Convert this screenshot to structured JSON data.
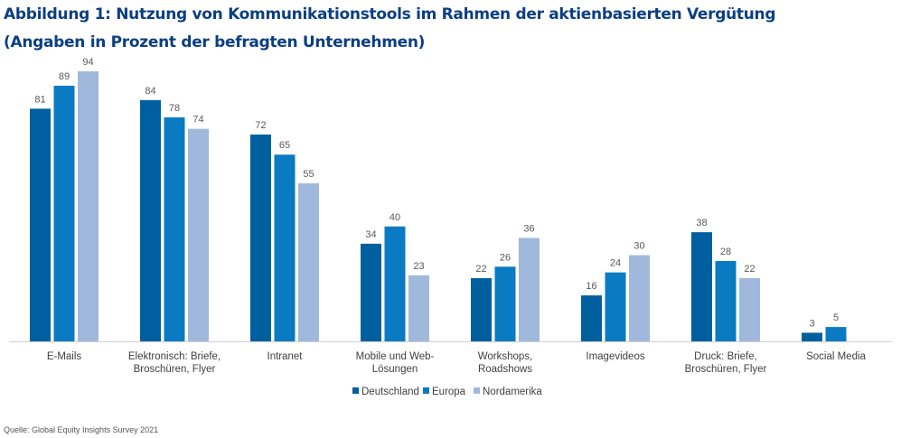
{
  "title": "Abbildung 1: Nutzung von Kommunikationstools im Rahmen der aktienbasierten Vergütung",
  "subtitle": "(Angaben in Prozent der befragten Unternehmen)",
  "source": "Quelle: Global Equity Insights Survey 2021",
  "chart_data": {
    "type": "bar",
    "title": "Abbildung 1: Nutzung von Kommunikationstools im Rahmen der aktienbasierten Vergütung",
    "subtitle": "(Angaben in Prozent der befragten Unternehmen)",
    "categories": [
      [
        "E-Mails"
      ],
      [
        "Elektronisch: Briefe,",
        "Broschüren, Flyer"
      ],
      [
        "Intranet"
      ],
      [
        "Mobile und Web-",
        "Lösungen"
      ],
      [
        "Workshops,",
        "Roadshows"
      ],
      [
        "Imagevideos"
      ],
      [
        "Druck: Briefe,",
        "Broschüren, Flyer"
      ],
      [
        "Social Media"
      ]
    ],
    "series": [
      {
        "name": "Deutschland",
        "color": "#00609f",
        "values": [
          81,
          84,
          72,
          34,
          22,
          16,
          38,
          3
        ]
      },
      {
        "name": "Europa",
        "color": "#0a7bc2",
        "values": [
          89,
          78,
          65,
          40,
          26,
          24,
          28,
          5
        ]
      },
      {
        "name": "Nordamerika",
        "color": "#a0b8dc",
        "values": [
          94,
          74,
          55,
          23,
          36,
          30,
          22,
          null
        ]
      }
    ],
    "ylim": [
      0,
      94
    ],
    "grid": false,
    "data_labels": true,
    "legend_position": "bottom"
  }
}
